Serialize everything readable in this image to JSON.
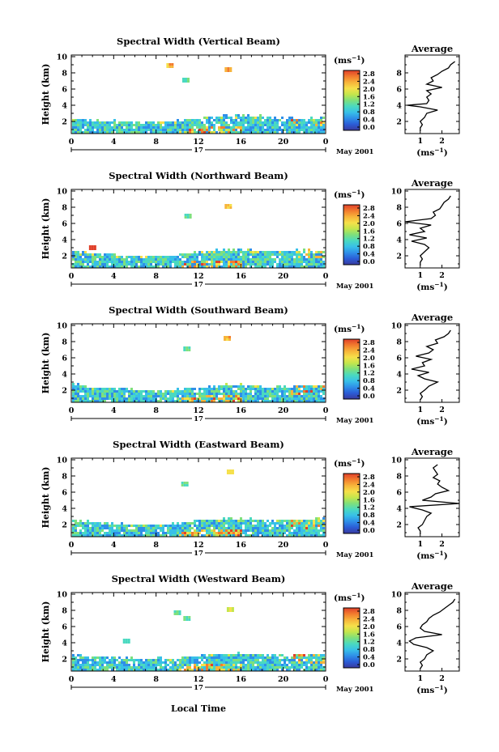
{
  "figure": {
    "xlabel_bottom": "Local Time",
    "date_day": "17",
    "date_label": "May 2001",
    "unit_label": "(ms",
    "unit_exponent": "−1",
    "ylabel": "Height (km)",
    "average_title": "Average",
    "average_xlabel": "(ms",
    "average_xlabel_exponent": "−1",
    "colorbar_ticks": [
      "0.0",
      "0.4",
      "0.8",
      "1.2",
      "1.6",
      "2.0",
      "2.4",
      "2.8"
    ],
    "colors": {
      "colormap": [
        "#3a3a9e",
        "#2b5cd6",
        "#2f8fe8",
        "#38c0e8",
        "#4ad9c0",
        "#7ee07c",
        "#c4e64c",
        "#f6e04a",
        "#f7b43a",
        "#f27c2e",
        "#e0402a"
      ]
    }
  },
  "chart_data": [
    {
      "type": "heatmap",
      "title": "Spectral Width (Vertical Beam)",
      "xlabel": "",
      "ylabel": "Height (km)",
      "x_ticks": [
        "0",
        "4",
        "8",
        "12",
        "16",
        "20",
        "0"
      ],
      "y_ticks": [
        "2",
        "4",
        "6",
        "8",
        "10"
      ],
      "xlim": [
        0,
        24
      ],
      "ylim": [
        0.5,
        10.2
      ],
      "colorbar": {
        "range": [
          0.0,
          2.8
        ],
        "ticks": [
          "0.0",
          "0.4",
          "0.8",
          "1.2",
          "1.6",
          "2.0",
          "2.4",
          "2.8"
        ],
        "unit": "(ms−1)"
      },
      "echo_top_km": [
        2.5,
        2.2,
        2.2,
        2.1,
        2.1,
        2.3,
        2.5,
        2.9,
        2.9,
        2.8,
        2.6,
        2.6,
        2.6
      ],
      "isolated_echoes": [
        {
          "time_h": 10.7,
          "height_km": 7.2,
          "value": 1.3
        },
        {
          "time_h": 14.7,
          "height_km": 8.5,
          "value": 2.2
        },
        {
          "time_h": 9.2,
          "height_km": 9.0,
          "value": 2.2
        }
      ],
      "average_profile": {
        "type": "line",
        "title": "Average",
        "xlabel": "(ms−1)",
        "x_ticks": [
          "1",
          "2"
        ],
        "y_ticks": [
          "2",
          "4",
          "6",
          "8"
        ],
        "xlim": [
          0.3,
          2.8
        ],
        "ylim": [
          0.5,
          10.2
        ],
        "height_km": [
          0.8,
          1.2,
          1.6,
          2.0,
          2.5,
          3.0,
          3.4,
          3.8,
          4.0,
          4.2,
          4.6,
          5.0,
          5.4,
          5.8,
          6.2,
          6.6,
          7.0,
          7.4,
          7.8,
          8.2,
          8.6,
          9.0,
          9.4
        ],
        "width_ms": [
          1.0,
          1.0,
          1.1,
          1.0,
          1.2,
          1.3,
          1.8,
          1.0,
          0.4,
          1.3,
          1.4,
          1.3,
          1.5,
          1.3,
          2.0,
          1.3,
          1.6,
          1.5,
          1.8,
          2.0,
          2.3,
          2.4,
          2.6
        ]
      }
    },
    {
      "type": "heatmap",
      "title": "Spectral Width (Northward Beam)",
      "xlabel": "",
      "ylabel": "Height (km)",
      "x_ticks": [
        "0",
        "4",
        "8",
        "12",
        "16",
        "20",
        "0"
      ],
      "y_ticks": [
        "2",
        "4",
        "6",
        "8",
        "10"
      ],
      "xlim": [
        0,
        24
      ],
      "ylim": [
        0.5,
        10.2
      ],
      "colorbar": {
        "range": [
          0.0,
          2.8
        ],
        "ticks": [
          "0.0",
          "0.4",
          "0.8",
          "1.2",
          "1.6",
          "2.0",
          "2.4",
          "2.8"
        ],
        "unit": "(ms−1)"
      },
      "echo_top_km": [
        2.8,
        2.5,
        2.3,
        2.1,
        2.1,
        2.3,
        2.6,
        2.9,
        2.9,
        2.8,
        2.7,
        2.9,
        2.7
      ],
      "isolated_echoes": [
        {
          "time_h": 10.9,
          "height_km": 7.0,
          "value": 1.3
        },
        {
          "time_h": 14.7,
          "height_km": 8.2,
          "value": 2.0
        },
        {
          "time_h": 1.9,
          "height_km": 3.1,
          "value": 2.8
        }
      ],
      "average_profile": {
        "type": "line",
        "title": "Average",
        "xlabel": "(ms−1)",
        "x_ticks": [
          "1",
          "2"
        ],
        "y_ticks": [
          "2",
          "4",
          "6",
          "8",
          "10"
        ],
        "xlim": [
          0.3,
          2.8
        ],
        "ylim": [
          0.5,
          10.2
        ],
        "height_km": [
          0.8,
          1.2,
          1.6,
          2.0,
          2.5,
          3.0,
          3.4,
          3.8,
          4.2,
          4.6,
          5.0,
          5.4,
          5.8,
          6.2,
          6.6,
          7.0,
          7.4,
          7.8,
          8.2,
          8.6,
          9.0,
          9.4
        ],
        "width_ms": [
          1.0,
          1.0,
          1.1,
          1.0,
          1.2,
          1.4,
          1.2,
          0.6,
          1.3,
          0.5,
          1.2,
          1.0,
          1.5,
          0.3,
          1.5,
          1.7,
          1.6,
          1.9,
          2.0,
          2.1,
          2.3,
          2.4
        ]
      }
    },
    {
      "type": "heatmap",
      "title": "Spectral Width (Southward Beam)",
      "xlabel": "",
      "ylabel": "Height (km)",
      "x_ticks": [
        "0",
        "4",
        "8",
        "12",
        "16",
        "20",
        "0"
      ],
      "y_ticks": [
        "2",
        "4",
        "6",
        "8",
        "10"
      ],
      "xlim": [
        0,
        24
      ],
      "ylim": [
        0.5,
        10.2
      ],
      "colorbar": {
        "range": [
          0.0,
          2.8
        ],
        "ticks": [
          "0.0",
          "0.4",
          "0.8",
          "1.2",
          "1.6",
          "2.0",
          "2.4",
          "2.8"
        ],
        "unit": "(ms−1)"
      },
      "echo_top_km": [
        3.0,
        2.5,
        2.4,
        2.2,
        2.1,
        2.3,
        2.5,
        2.8,
        2.8,
        2.6,
        2.6,
        2.8,
        2.8
      ],
      "isolated_echoes": [
        {
          "time_h": 10.8,
          "height_km": 7.2,
          "value": 1.3
        },
        {
          "time_h": 14.6,
          "height_km": 8.5,
          "value": 2.2
        }
      ],
      "average_profile": {
        "type": "line",
        "title": "Average",
        "xlabel": "(ms−1)",
        "x_ticks": [
          "1",
          "2"
        ],
        "y_ticks": [
          "2",
          "4",
          "6",
          "8",
          "10"
        ],
        "xlim": [
          0.3,
          2.8
        ],
        "ylim": [
          0.5,
          10.2
        ],
        "height_km": [
          0.8,
          1.2,
          1.6,
          2.0,
          2.5,
          3.0,
          3.4,
          3.8,
          4.2,
          4.6,
          5.0,
          5.4,
          5.8,
          6.2,
          6.6,
          7.0,
          7.4,
          7.8,
          8.2,
          8.6,
          9.0,
          9.4
        ],
        "width_ms": [
          1.0,
          1.1,
          1.0,
          1.2,
          1.4,
          1.8,
          1.2,
          0.9,
          1.4,
          0.6,
          1.2,
          1.1,
          1.5,
          0.8,
          1.4,
          1.6,
          1.3,
          1.8,
          1.7,
          2.1,
          2.3,
          2.4
        ]
      }
    },
    {
      "type": "heatmap",
      "title": "Spectral Width (Eastward Beam)",
      "xlabel": "",
      "ylabel": "Height (km)",
      "x_ticks": [
        "0",
        "4",
        "8",
        "12",
        "16",
        "20",
        "0"
      ],
      "y_ticks": [
        "2",
        "4",
        "6",
        "8",
        "10"
      ],
      "xlim": [
        0,
        24
      ],
      "ylim": [
        0.5,
        10.2
      ],
      "colorbar": {
        "range": [
          0.0,
          2.8
        ],
        "ticks": [
          "0.0",
          "0.4",
          "0.8",
          "1.2",
          "1.6",
          "2.0",
          "2.4",
          "2.8"
        ],
        "unit": "(ms−1)"
      },
      "echo_top_km": [
        2.9,
        2.5,
        2.3,
        2.1,
        2.1,
        2.3,
        2.7,
        2.9,
        2.9,
        2.7,
        2.6,
        2.9,
        2.9
      ],
      "isolated_echoes": [
        {
          "time_h": 10.6,
          "height_km": 7.1,
          "value": 1.3
        },
        {
          "time_h": 14.9,
          "height_km": 8.6,
          "value": 2.0
        }
      ],
      "average_profile": {
        "type": "line",
        "title": "Average",
        "xlabel": "(ms−1)",
        "x_ticks": [
          "1",
          "2"
        ],
        "y_ticks": [
          "2",
          "4",
          "6",
          "8",
          "10"
        ],
        "xlim": [
          0.3,
          2.8
        ],
        "ylim": [
          0.5,
          10.2
        ],
        "height_km": [
          0.8,
          1.2,
          1.6,
          2.0,
          2.5,
          3.0,
          3.4,
          3.8,
          4.2,
          4.6,
          5.0,
          5.4,
          5.8,
          6.2,
          6.6,
          7.0,
          7.4,
          7.8,
          8.2,
          8.6,
          9.0,
          9.4
        ],
        "width_ms": [
          1.0,
          1.0,
          0.9,
          1.1,
          1.2,
          1.3,
          1.5,
          1.1,
          0.5,
          2.8,
          1.1,
          1.5,
          1.7,
          2.3,
          2.0,
          1.8,
          1.9,
          1.6,
          1.8,
          1.7,
          1.6,
          1.8
        ]
      }
    },
    {
      "type": "heatmap",
      "title": "Spectral Width (Westward Beam)",
      "xlabel": "Local Time",
      "ylabel": "Height (km)",
      "x_ticks": [
        "0",
        "4",
        "8",
        "12",
        "16",
        "20",
        "0"
      ],
      "y_ticks": [
        "2",
        "4",
        "6",
        "8",
        "10"
      ],
      "xlim": [
        0,
        24
      ],
      "ylim": [
        0.5,
        10.2
      ],
      "colorbar": {
        "range": [
          0.0,
          2.8
        ],
        "ticks": [
          "0.0",
          "0.4",
          "0.8",
          "1.2",
          "1.6",
          "2.0",
          "2.4",
          "2.8"
        ],
        "unit": "(ms−1)"
      },
      "echo_top_km": [
        2.7,
        2.4,
        2.4,
        2.2,
        2.2,
        2.3,
        2.6,
        2.8,
        2.8,
        2.7,
        2.6,
        2.7,
        2.8
      ],
      "isolated_echoes": [
        {
          "time_h": 10.8,
          "height_km": 7.1,
          "value": 1.3
        },
        {
          "time_h": 14.9,
          "height_km": 8.2,
          "value": 1.8
        },
        {
          "time_h": 9.9,
          "height_km": 7.8,
          "value": 1.3
        },
        {
          "time_h": 5.1,
          "height_km": 4.3,
          "value": 1.2
        }
      ],
      "average_profile": {
        "type": "line",
        "title": "Average",
        "xlabel": "(ms−1)",
        "x_ticks": [
          "1",
          "2"
        ],
        "y_ticks": [
          "2",
          "4",
          "6",
          "8",
          "10"
        ],
        "xlim": [
          0.3,
          2.8
        ],
        "ylim": [
          0.5,
          10.2
        ],
        "height_km": [
          0.8,
          1.2,
          1.6,
          2.0,
          2.5,
          3.0,
          3.4,
          3.8,
          4.2,
          4.6,
          5.0,
          5.4,
          5.8,
          6.2,
          6.6,
          7.0,
          7.4,
          7.8,
          8.2,
          8.6,
          9.0,
          9.4
        ],
        "width_ms": [
          1.0,
          1.1,
          1.0,
          1.2,
          1.3,
          1.6,
          1.3,
          0.7,
          0.5,
          0.8,
          2.0,
          1.2,
          1.0,
          1.1,
          1.3,
          1.4,
          1.6,
          1.9,
          2.1,
          2.3,
          2.5,
          2.6
        ]
      }
    }
  ]
}
